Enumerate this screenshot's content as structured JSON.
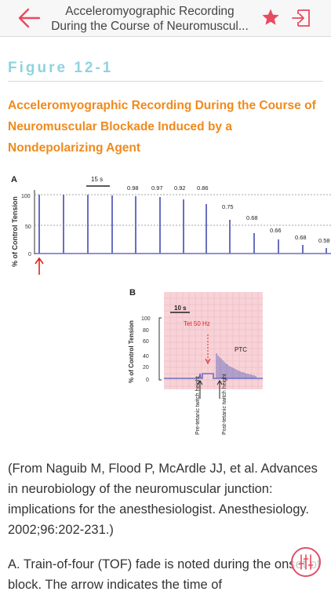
{
  "header": {
    "title_line1": "Acceleromyographic Recording",
    "title_line2": "During the Course of Neuromuscul...",
    "back_icon": "arrow-left-icon",
    "favorite_icon": "star-icon",
    "exit_icon": "exit-icon"
  },
  "figure": {
    "label": "Figure 12-1",
    "title": "Acceleromyographic Recording During the Course of Neuromuscular Blockade Induced by a Nondepolarizing Agent",
    "panel_a": {
      "panel_letter": "A",
      "ylabel": "% of Control Tension",
      "yticks": [
        "100",
        "50",
        "0"
      ],
      "scale_bar": "15 s",
      "ratios": [
        "0.98",
        "0.97",
        "0.92",
        "0.86",
        "0.75",
        "0.68",
        "0.66",
        "0.68",
        "0.58"
      ]
    },
    "panel_b": {
      "panel_letter": "B",
      "ylabel": "% of Control Tension",
      "yticks": [
        "100",
        "80",
        "60",
        "40",
        "20",
        "0"
      ],
      "scale_bar": "10 s",
      "tetanus_label": "Tet 50 Hz",
      "ptc_label": "PTC",
      "pre_label": "Pre-tetanic twitch height",
      "post_label": "Post-tetanic twitch height"
    }
  },
  "caption": "(From Naguib M, Flood P, McArdle JJ, et al. Advances in neurobiology of the neuromuscular junction: implications for the anesthesiologist. Anesthesiology. 2002;96:202-231.)",
  "body_text": "A. Train-of-four (TOF) fade is noted during the onset of block. The arrow indicates the time of",
  "colors": {
    "accent": "#e84a5f",
    "figure_label": "#8fd3df",
    "figure_title": "#f08a1c",
    "trace": "#6a6fc0"
  },
  "tools_icon": "sliders-icon"
}
